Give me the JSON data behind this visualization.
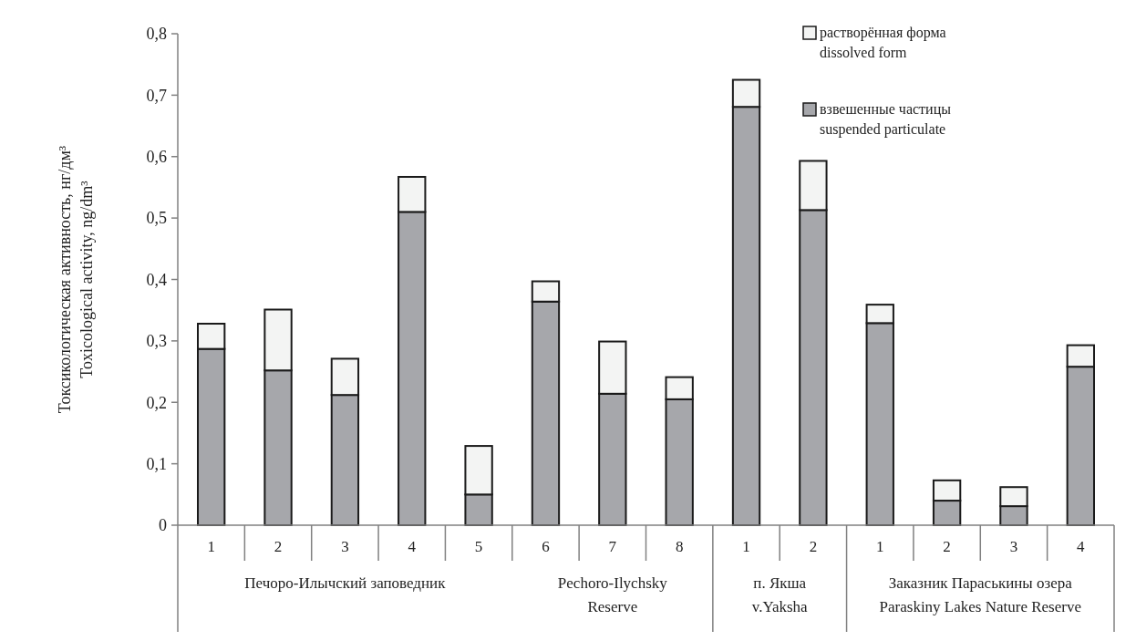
{
  "chart_data": {
    "type": "bar",
    "stacked": true,
    "ylabel": "Токсикологическая активность, нг/дм³\nToxicological activity, ng/dm³",
    "categories": [
      "1",
      "2",
      "3",
      "4",
      "5",
      "6",
      "7",
      "8",
      "1",
      "2",
      "1",
      "2",
      "3",
      "4"
    ],
    "series": [
      {
        "name": "взвешенные частицы\nsuspended particulate",
        "color": "#a6a7ab",
        "values": [
          0.287,
          0.252,
          0.212,
          0.51,
          0.05,
          0.364,
          0.214,
          0.205,
          0.681,
          0.513,
          0.329,
          0.04,
          0.031,
          0.258
        ]
      },
      {
        "name": "растворённая форма\ndissolved form",
        "color": "#f3f4f3",
        "values": [
          0.041,
          0.099,
          0.059,
          0.057,
          0.079,
          0.033,
          0.085,
          0.036,
          0.044,
          0.08,
          0.03,
          0.033,
          0.031,
          0.035
        ]
      }
    ],
    "ylim": [
      0,
      0.8
    ],
    "yticks": [
      0,
      {
        "value": 0.1,
        "label": "0,1"
      },
      {
        "value": 0.2,
        "label": "0,2"
      },
      {
        "value": 0.3,
        "label": "0,3"
      },
      {
        "value": 0.4,
        "label": "0,4"
      },
      {
        "value": 0.5,
        "label": "0,5"
      },
      {
        "value": 0.6,
        "label": "0,6"
      },
      {
        "value": 0.7,
        "label": "0,7"
      },
      {
        "value": 0.8,
        "label": "0,8"
      }
    ],
    "grid": false,
    "legend": "top",
    "annotations": [
      "Печоро-Илычский заповедник",
      "Pechoro-Ilychsky\nReserve",
      "п. Якша\nv.Yaksha",
      "Заказник Параськины озера\nParaskiny Lakes Nature Reserve"
    ]
  }
}
